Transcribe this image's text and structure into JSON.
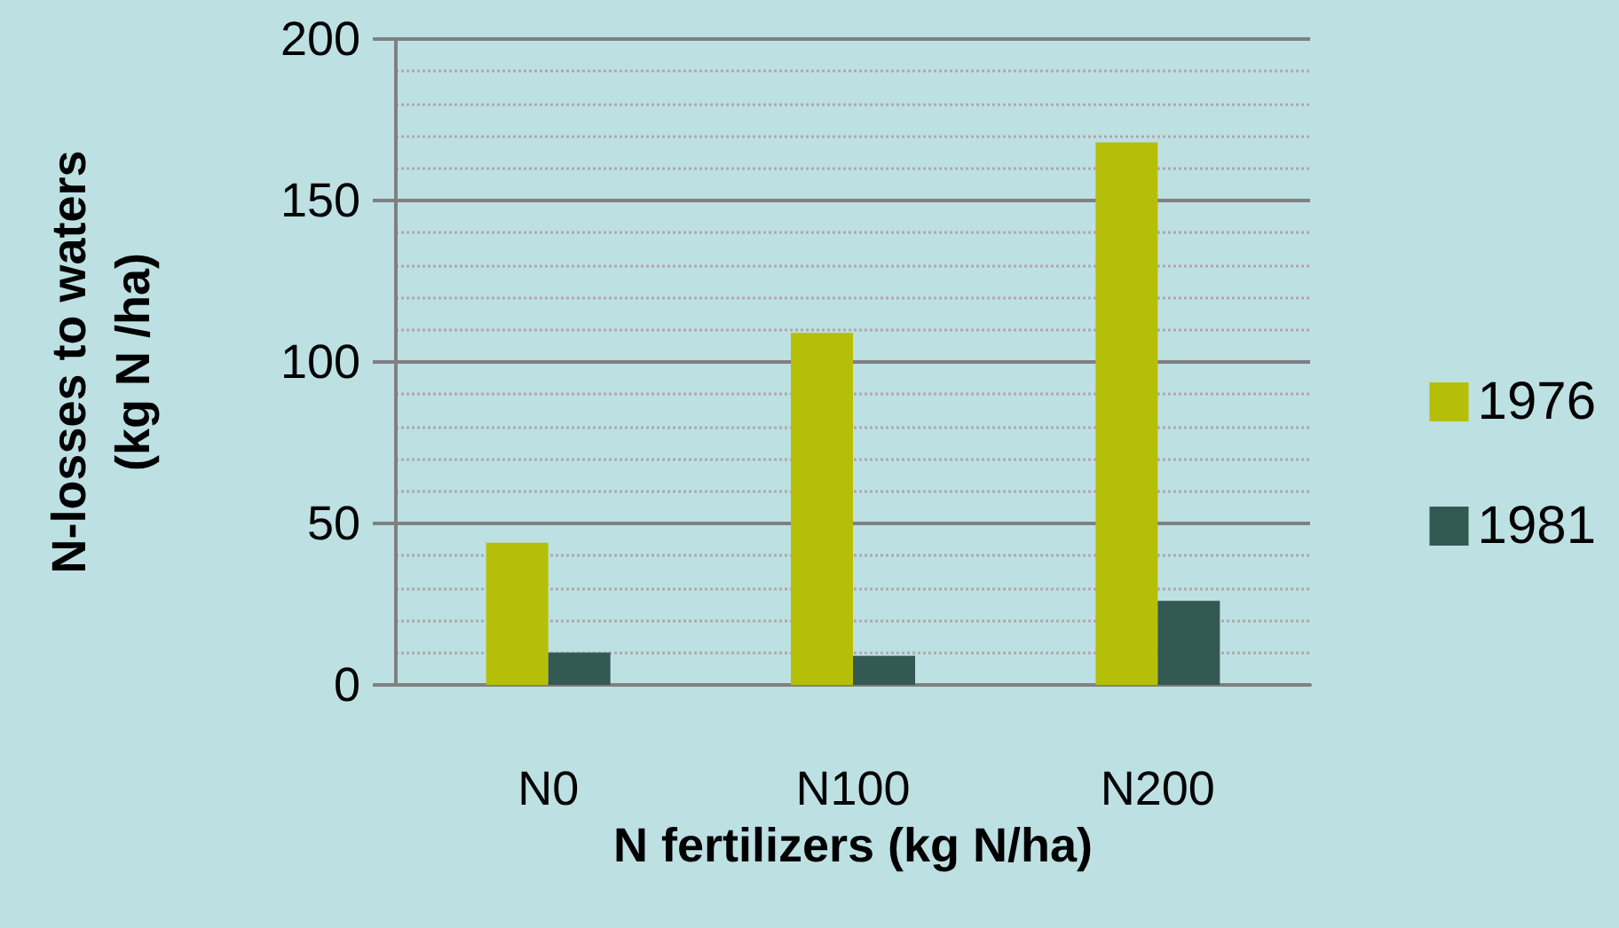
{
  "chart_data": {
    "type": "bar",
    "xlabel": "N fertilizers (kg N/ha)",
    "ylabel": "N-losses to waters\n(kg N /ha)",
    "categories": [
      "N0",
      "N100",
      "N200"
    ],
    "series": [
      {
        "name": "1976",
        "color": "#b5bf07",
        "values": [
          44,
          109,
          168
        ]
      },
      {
        "name": "1981",
        "color": "#325a52",
        "values": [
          10,
          9,
          26
        ]
      }
    ],
    "ylim": [
      0,
      200
    ],
    "yticks": [
      0,
      50,
      100,
      150,
      200
    ],
    "grid": "y",
    "legend": "right"
  }
}
